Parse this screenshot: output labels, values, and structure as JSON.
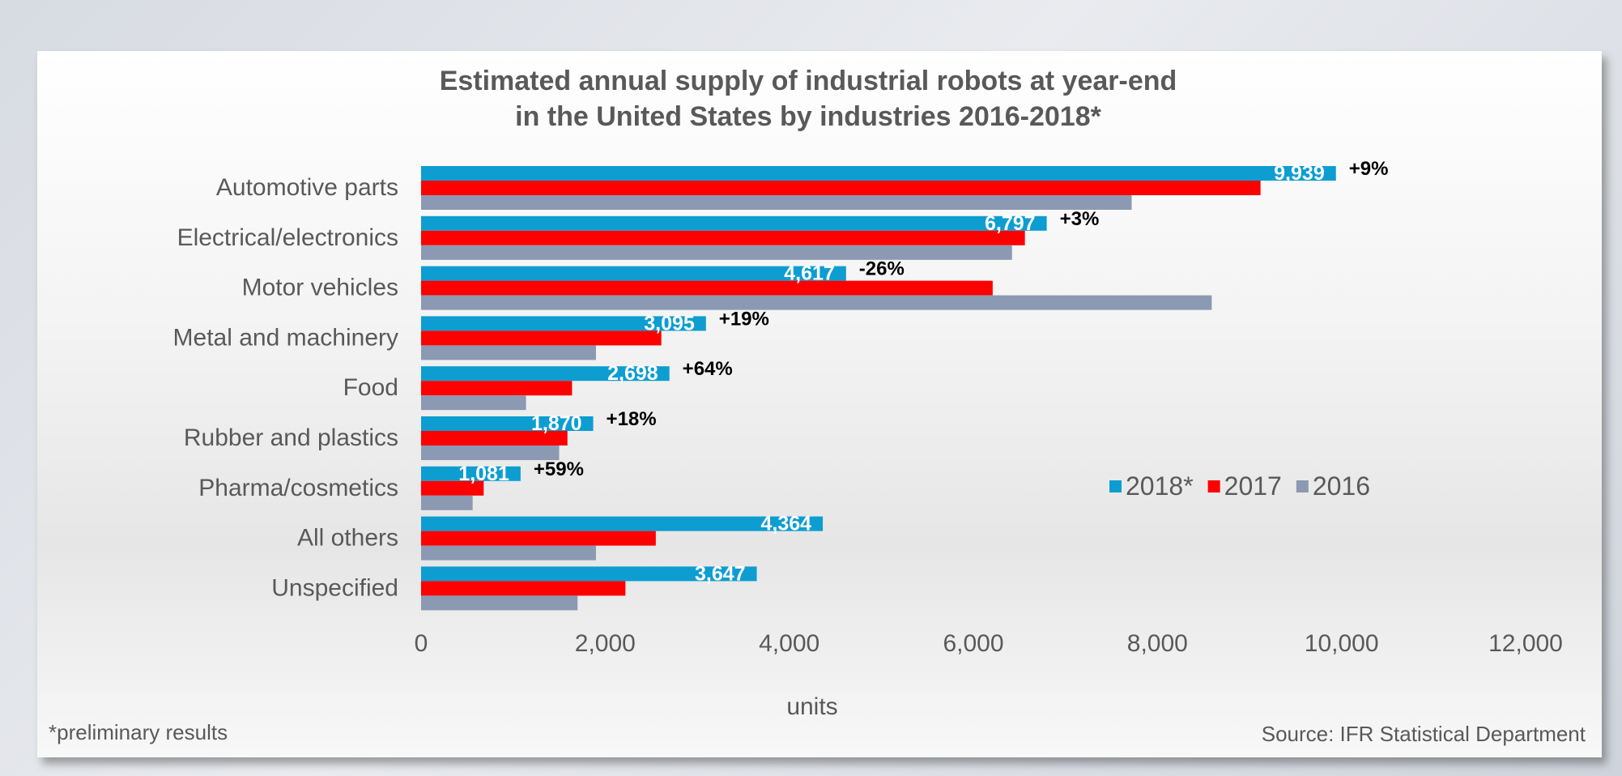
{
  "chart_data": {
    "type": "bar",
    "orientation": "horizontal",
    "title": "Estimated annual supply of industrial robots at year-end",
    "title_line2": "in the United States by industries 2016-2018*",
    "categories": [
      "Automotive parts",
      "Electrical/electronics",
      "Motor vehicles",
      "Metal and machinery",
      "Food",
      "Rubber and plastics",
      "Pharma/cosmetics",
      "All others",
      "Unspecified"
    ],
    "series": [
      {
        "name": "2018*",
        "color": "#0d9dd1",
        "values": [
          9939,
          6797,
          4617,
          3095,
          2698,
          1870,
          1081,
          4364,
          3647
        ]
      },
      {
        "name": "2017",
        "color": "#fd0000",
        "values": [
          9120,
          6560,
          6210,
          2610,
          1640,
          1590,
          680,
          2550,
          2220
        ]
      },
      {
        "name": "2016",
        "color": "#8c99b3",
        "values": [
          7720,
          6420,
          8590,
          1900,
          1140,
          1500,
          560,
          1900,
          1700
        ]
      }
    ],
    "data_labels": [
      "9,939",
      "6,797",
      "4,617",
      "3,095",
      "2,698",
      "1,870",
      "1,081",
      "4,364",
      "3,647"
    ],
    "change_labels": [
      "+9%",
      "+3%",
      "-26%",
      "+19%",
      "+64%",
      "+18%",
      "+59%",
      "",
      ""
    ],
    "x_ticks": [
      "0",
      "2,000",
      "4,000",
      "6,000",
      "8,000",
      "10,000",
      "12,000"
    ],
    "xlim": [
      0,
      12000
    ],
    "xlabel": "units",
    "legend_position": "right",
    "footnote": "*preliminary results",
    "source": "Source: IFR Statistical Department"
  }
}
